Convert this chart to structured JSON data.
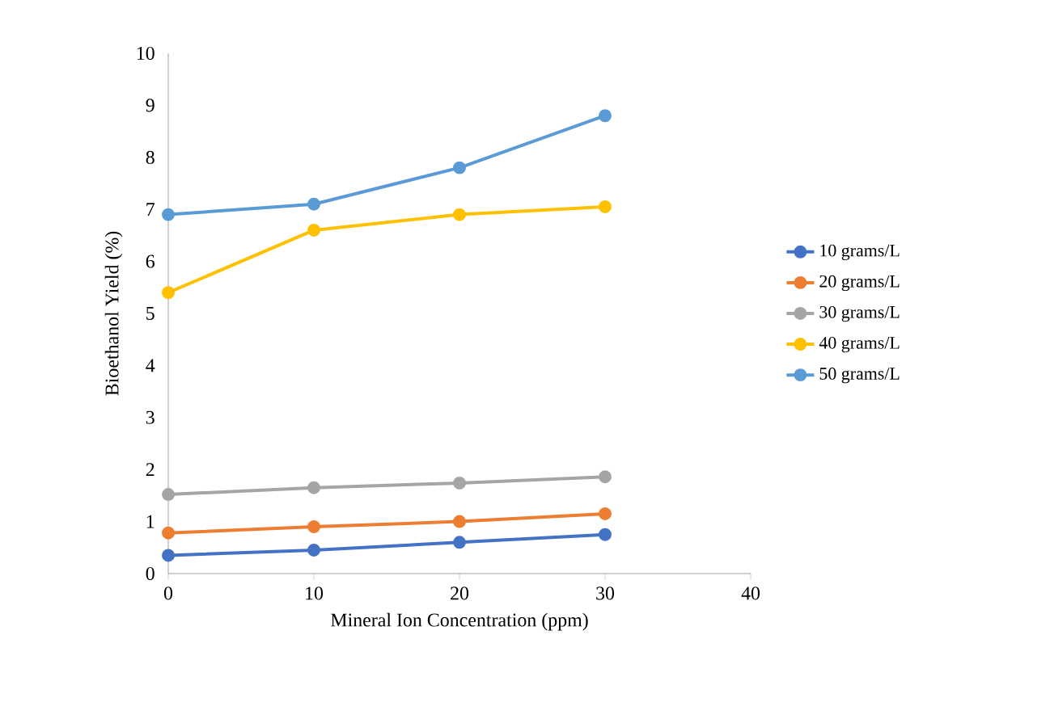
{
  "chart_data": {
    "type": "line",
    "xlabel": "Mineral Ion Concentration (ppm)",
    "ylabel": "Bioethanol Yield (%)",
    "x": [
      0,
      10,
      20,
      30
    ],
    "series": [
      {
        "name": "10 grams/L",
        "color": "#4472c4",
        "values": [
          0.35,
          0.45,
          0.6,
          0.75
        ]
      },
      {
        "name": "20 grams/L",
        "color": "#ed7d31",
        "values": [
          0.78,
          0.9,
          1.0,
          1.15
        ]
      },
      {
        "name": "30 grams/L",
        "color": "#a5a5a5",
        "values": [
          1.52,
          1.65,
          1.74,
          1.86
        ]
      },
      {
        "name": "40 grams/L",
        "color": "#ffc000",
        "values": [
          5.4,
          6.6,
          6.9,
          7.05
        ]
      },
      {
        "name": "50 grams/L",
        "color": "#5b9bd5",
        "values": [
          6.9,
          7.1,
          7.8,
          8.8
        ]
      }
    ],
    "xlim": [
      0,
      40
    ],
    "xticks": [
      0,
      10,
      20,
      30,
      40
    ],
    "ylim": [
      0,
      10
    ],
    "yticks": [
      0,
      1,
      2,
      3,
      4,
      5,
      6,
      7,
      8,
      9,
      10
    ],
    "grid": false,
    "legend": "right",
    "marker": "circle",
    "line_style": "solid"
  }
}
